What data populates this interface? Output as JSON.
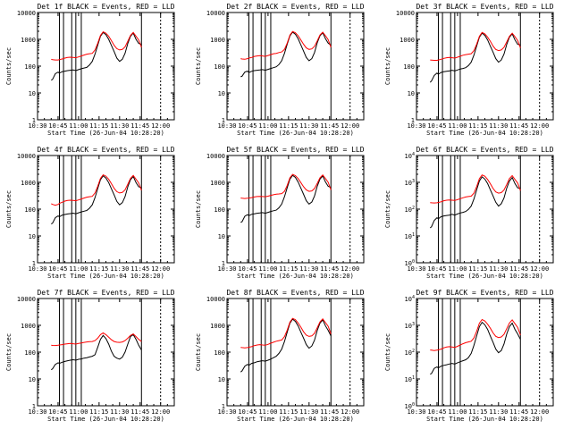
{
  "chart_data": {
    "type": "line",
    "figure_background": "#ffffff",
    "series_colors": {
      "events": "#000000",
      "lld": "#ff0000"
    },
    "x_tick_labels": [
      "10:30",
      "10:45",
      "11:00",
      "11:15",
      "11:30",
      "11:45",
      "12:00"
    ],
    "x_tick_minutes": [
      0,
      15,
      30,
      45,
      60,
      75,
      90
    ],
    "xlim_minutes": [
      0,
      100
    ],
    "xlabel": "Start Time (26-Jun-04 10:28:20)",
    "ylabel": "Counts/sec",
    "ylim": [
      1,
      10000
    ],
    "yscale": "log",
    "vertical_markers_minutes": [
      16,
      19,
      25,
      28,
      32,
      76,
      90
    ],
    "time_minutes": [
      10,
      11,
      13,
      15,
      16,
      18,
      20,
      22,
      24,
      26,
      28,
      30,
      32,
      34,
      36,
      38,
      40,
      42,
      44,
      46,
      48,
      50,
      52,
      54,
      56,
      58,
      60,
      62,
      64,
      66,
      68,
      70,
      72,
      74,
      76
    ],
    "panels": [
      {
        "title": "Det 1f BLACK = Events, RED = LLD",
        "y_tick_labels": [
          "1",
          "10",
          "100",
          "1000",
          "10000"
        ],
        "events": [
          30,
          32,
          52,
          60,
          55,
          62,
          65,
          68,
          70,
          72,
          68,
          74,
          80,
          85,
          90,
          110,
          150,
          280,
          600,
          1300,
          1800,
          1500,
          1000,
          600,
          350,
          200,
          150,
          180,
          300,
          700,
          1300,
          1700,
          1000,
          700,
          650
        ],
        "lld": [
          180,
          175,
          170,
          170,
          175,
          185,
          200,
          210,
          215,
          210,
          205,
          220,
          240,
          260,
          280,
          290,
          300,
          400,
          700,
          1400,
          1900,
          1700,
          1300,
          900,
          600,
          450,
          400,
          420,
          520,
          850,
          1400,
          1800,
          1300,
          950,
          500
        ]
      },
      {
        "title": "Det 2f BLACK = Events, RED = LLD",
        "y_tick_labels": [
          "1",
          "10",
          "100",
          "1000",
          "10000"
        ],
        "events": [
          40,
          42,
          60,
          65,
          58,
          64,
          68,
          70,
          72,
          74,
          70,
          76,
          82,
          88,
          95,
          115,
          160,
          300,
          650,
          1350,
          1850,
          1550,
          1050,
          620,
          360,
          210,
          160,
          190,
          320,
          750,
          1350,
          1750,
          1050,
          720,
          600
        ],
        "lld": [
          190,
          185,
          180,
          190,
          200,
          210,
          230,
          240,
          245,
          240,
          230,
          250,
          270,
          290,
          300,
          320,
          340,
          420,
          720,
          1450,
          1950,
          1750,
          1350,
          950,
          650,
          480,
          420,
          440,
          550,
          880,
          1450,
          1850,
          1350,
          980,
          500
        ]
      },
      {
        "title": "Det 3f BLACK = Events, RED = LLD",
        "y_tick_labels": [
          "1",
          "10",
          "100",
          "1000",
          "10000"
        ],
        "events": [
          25,
          28,
          45,
          55,
          50,
          58,
          62,
          64,
          66,
          70,
          66,
          72,
          78,
          82,
          88,
          105,
          140,
          260,
          560,
          1200,
          1700,
          1400,
          950,
          560,
          330,
          190,
          140,
          170,
          280,
          650,
          1200,
          1600,
          950,
          650,
          620
        ],
        "lld": [
          170,
          168,
          165,
          165,
          170,
          180,
          195,
          205,
          210,
          205,
          200,
          215,
          235,
          255,
          270,
          280,
          290,
          380,
          650,
          1300,
          1800,
          1600,
          1200,
          850,
          560,
          420,
          380,
          400,
          500,
          800,
          1300,
          1700,
          1250,
          900,
          480
        ]
      },
      {
        "title": "Det 4f BLACK = Events, RED = LLD",
        "y_tick_labels": [
          "1",
          "10",
          "100",
          "1000",
          "10000"
        ],
        "events": [
          28,
          30,
          48,
          56,
          52,
          60,
          63,
          66,
          68,
          71,
          67,
          73,
          79,
          84,
          89,
          108,
          145,
          270,
          580,
          1250,
          1750,
          1450,
          980,
          580,
          340,
          195,
          145,
          175,
          290,
          680,
          1250,
          1650,
          980,
          680,
          630
        ],
        "lld": [
          160,
          150,
          140,
          150,
          165,
          180,
          200,
          210,
          215,
          210,
          205,
          220,
          240,
          260,
          280,
          290,
          300,
          400,
          700,
          1400,
          1900,
          1700,
          1300,
          900,
          600,
          450,
          400,
          420,
          520,
          850,
          1400,
          1800,
          1300,
          950,
          500
        ]
      },
      {
        "title": "Det 5f BLACK = Events, RED = LLD",
        "y_tick_labels": [
          "1",
          "10",
          "100",
          "1000",
          "10000"
        ],
        "events": [
          32,
          34,
          54,
          62,
          57,
          64,
          67,
          70,
          72,
          74,
          70,
          76,
          82,
          87,
          92,
          112,
          155,
          290,
          620,
          1320,
          1820,
          1520,
          1020,
          610,
          355,
          205,
          155,
          185,
          310,
          720,
          1320,
          1720,
          1020,
          710,
          640
        ],
        "lld": [
          260,
          255,
          250,
          255,
          260,
          270,
          285,
          295,
          300,
          295,
          290,
          305,
          325,
          345,
          360,
          370,
          380,
          460,
          760,
          1480,
          1980,
          1780,
          1380,
          980,
          680,
          520,
          460,
          480,
          590,
          920,
          1480,
          1880,
          1380,
          1000,
          520
        ]
      },
      {
        "title": "Det 6f BLACK = Events, RED = LLD",
        "y_tick_labels": [
          "10^0",
          "10^1",
          "10^2",
          "10^3",
          "10^4"
        ],
        "events": [
          20,
          22,
          38,
          48,
          44,
          52,
          56,
          58,
          60,
          64,
          60,
          66,
          72,
          76,
          82,
          98,
          130,
          240,
          520,
          1120,
          1600,
          1320,
          900,
          530,
          310,
          180,
          130,
          160,
          260,
          610,
          1120,
          1500,
          900,
          620,
          600
        ],
        "lld": [
          175,
          172,
          170,
          172,
          178,
          188,
          205,
          215,
          220,
          215,
          210,
          225,
          245,
          265,
          285,
          295,
          305,
          395,
          690,
          1380,
          1880,
          1680,
          1280,
          890,
          590,
          440,
          395,
          415,
          515,
          840,
          1380,
          1780,
          1280,
          940,
          490
        ]
      },
      {
        "title": "Det 7f BLACK = Events, RED = LLD",
        "y_tick_labels": [
          "1",
          "10",
          "100",
          "1000",
          "10000"
        ],
        "events": [
          22,
          24,
          35,
          40,
          38,
          42,
          45,
          48,
          50,
          52,
          50,
          54,
          56,
          60,
          62,
          66,
          70,
          80,
          150,
          300,
          420,
          320,
          200,
          110,
          70,
          60,
          55,
          65,
          100,
          200,
          380,
          450,
          300,
          180,
          120
        ],
        "lld": [
          180,
          178,
          176,
          180,
          185,
          190,
          200,
          205,
          210,
          205,
          200,
          210,
          220,
          230,
          240,
          245,
          250,
          270,
          330,
          450,
          520,
          450,
          360,
          290,
          250,
          235,
          230,
          240,
          270,
          330,
          420,
          480,
          380,
          300,
          250
        ]
      },
      {
        "title": "Det 8f BLACK = Events, RED = LLD",
        "y_tick_labels": [
          "1",
          "10",
          "100",
          "1000",
          "10000"
        ],
        "events": [
          18,
          20,
          30,
          35,
          32,
          38,
          40,
          44,
          46,
          48,
          46,
          50,
          55,
          62,
          70,
          90,
          130,
          250,
          550,
          1200,
          1700,
          1400,
          950,
          560,
          330,
          190,
          140,
          170,
          280,
          650,
          1200,
          1600,
          950,
          650,
          400
        ],
        "lld": [
          150,
          148,
          145,
          148,
          152,
          160,
          175,
          185,
          190,
          185,
          180,
          195,
          215,
          235,
          255,
          270,
          285,
          380,
          660,
          1320,
          1820,
          1620,
          1220,
          860,
          570,
          430,
          385,
          405,
          505,
          820,
          1340,
          1740,
          1260,
          920,
          470
        ]
      },
      {
        "title": "Det 9f BLACK = Events, RED = LLD",
        "y_tick_labels": [
          "10^0",
          "10^1",
          "10^2",
          "10^3",
          "10^4"
        ],
        "events": [
          15,
          16,
          25,
          28,
          26,
          30,
          32,
          34,
          36,
          38,
          36,
          40,
          44,
          48,
          52,
          62,
          90,
          180,
          400,
          900,
          1300,
          1050,
          700,
          400,
          230,
          130,
          95,
          115,
          200,
          480,
          900,
          1200,
          700,
          480,
          300
        ],
        "lld": [
          120,
          118,
          115,
          118,
          122,
          130,
          145,
          155,
          160,
          155,
          150,
          165,
          185,
          205,
          225,
          240,
          255,
          340,
          600,
          1200,
          1650,
          1450,
          1100,
          780,
          520,
          390,
          350,
          370,
          460,
          750,
          1220,
          1600,
          1150,
          840,
          430
        ]
      }
    ]
  }
}
